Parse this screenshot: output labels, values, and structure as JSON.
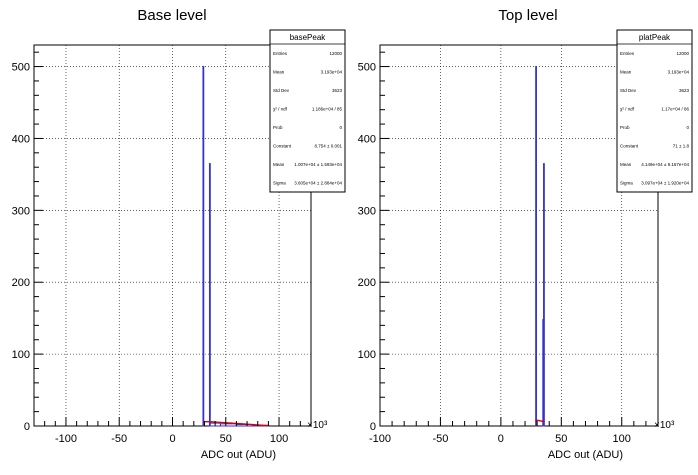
{
  "chart_data": [
    {
      "type": "bar",
      "title": "Base level",
      "xlabel": "ADC out (ADU)",
      "x_exponent": "×10³",
      "xlim": [
        -130000,
        130000
      ],
      "ylim": [
        0,
        530
      ],
      "x_ticks": [
        -100,
        -50,
        0,
        50,
        100
      ],
      "y_ticks": [
        0,
        100,
        200,
        300,
        400,
        500
      ],
      "grid": true,
      "histogram": {
        "color": "#3333cc",
        "bins": [
          {
            "x_start": 28600,
            "x_end": 28900,
            "count": 500
          },
          {
            "x_start": 34700,
            "x_end": 35000,
            "count": 365
          },
          {
            "x_start": 35000,
            "x_end": 45000,
            "count": 4
          },
          {
            "x_start": 45000,
            "x_end": 60000,
            "count": 3
          },
          {
            "x_start": 60000,
            "x_end": 75000,
            "count": 2
          },
          {
            "x_start": 75000,
            "x_end": 90000,
            "count": 1
          }
        ]
      },
      "fit": {
        "color": "#dd0000",
        "x": [
          29000,
          35000,
          45000,
          55000,
          65000,
          75000,
          85000,
          90000
        ],
        "y": [
          6,
          6,
          5,
          4,
          3,
          2,
          1,
          0.5
        ]
      },
      "stats": {
        "name": "basePeak",
        "rows": [
          {
            "label": "Entries",
            "value": "12000"
          },
          {
            "label": "Mean",
            "value": "3.193e+04"
          },
          {
            "label": "Std Dev",
            "value": "3623"
          },
          {
            "label": "χ² / ndf",
            "value": "1.186e+04 / 85"
          },
          {
            "label": "Prob",
            "value": "0"
          },
          {
            "label": "Constant",
            "value": "8.754 ± 0.001"
          },
          {
            "label": "Mean",
            "value": "1.007e+04 ± 1.593e+04"
          },
          {
            "label": "Sigma",
            "value": "3.605e+04 ± 2.884e+04"
          }
        ]
      }
    },
    {
      "type": "bar",
      "title": "Top level",
      "xlabel": "ADC out (ADU)",
      "x_exponent": "×10³",
      "xlim": [
        -100000,
        130000
      ],
      "ylim": [
        0,
        530
      ],
      "x_ticks": [
        -100,
        -50,
        0,
        50,
        100
      ],
      "y_ticks": [
        0,
        100,
        200,
        300,
        400,
        500
      ],
      "grid": true,
      "histogram": {
        "color": "#3333cc",
        "bins": [
          {
            "x_start": 28800,
            "x_end": 29100,
            "count": 500
          },
          {
            "x_start": 34700,
            "x_end": 35000,
            "count": 148
          },
          {
            "x_start": 35300,
            "x_end": 35600,
            "count": 365
          }
        ]
      },
      "fit": {
        "color": "#dd0000",
        "x": [
          28500,
          30000,
          33000,
          35500
        ],
        "y": [
          7,
          8,
          7,
          6
        ]
      },
      "stats": {
        "name": "platPeak",
        "rows": [
          {
            "label": "Entries",
            "value": "12000"
          },
          {
            "label": "Mean",
            "value": "3.193e+04"
          },
          {
            "label": "Std Dev",
            "value": "3623"
          },
          {
            "label": "χ² / ndf",
            "value": "1.17e+04 / 86"
          },
          {
            "label": "Prob",
            "value": "0"
          },
          {
            "label": "Constant",
            "value": "71 ± 1.8"
          },
          {
            "label": "Mean",
            "value": "4.149e+04 ± 9.167e+04"
          },
          {
            "label": "Sigma",
            "value": "3.097e+04 ± 1.920e+04"
          }
        ]
      }
    }
  ]
}
